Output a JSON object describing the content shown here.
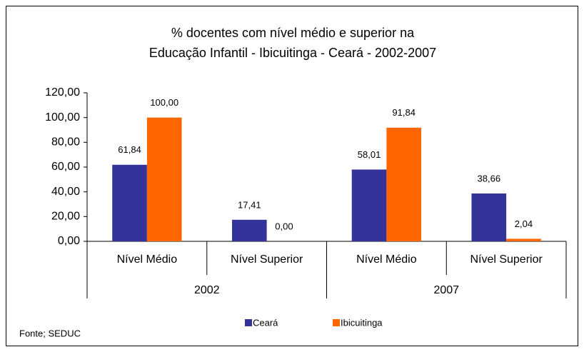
{
  "chart_data": {
    "type": "bar",
    "title": [
      "% docentes com nível médio e superior na",
      "Educação Infantil - Ibicuitinga -  Ceará - 2002-2007"
    ],
    "categories": [
      "Nível Médio",
      "Nível Superior",
      "Nível Médio",
      "Nível Superior"
    ],
    "groups": [
      "2002",
      "2007"
    ],
    "series": [
      {
        "name": "Ceará",
        "color": "#333399",
        "values": [
          61.84,
          17.41,
          58.01,
          38.66
        ],
        "value_labels": [
          "61,84",
          "17,41",
          "58,01",
          "38,66"
        ]
      },
      {
        "name": "Ibicuitinga",
        "color": "#FF6600",
        "values": [
          100,
          0,
          91.84,
          2.04
        ],
        "value_labels": [
          "100,00",
          "0,00",
          "91,84",
          "2,04"
        ]
      }
    ],
    "ylim": [
      0,
      120
    ],
    "yticks": [
      {
        "value": 0,
        "label": "0,00"
      },
      {
        "value": 20,
        "label": "20,00"
      },
      {
        "value": 40,
        "label": "40,00"
      },
      {
        "value": 60,
        "label": "60,00"
      },
      {
        "value": 80,
        "label": "80,00"
      },
      {
        "value": 100,
        "label": "100,00"
      },
      {
        "value": 120,
        "label": "120,00"
      }
    ],
    "grid": false,
    "legend": "bottom",
    "note": "Fonte; SEDUC"
  }
}
